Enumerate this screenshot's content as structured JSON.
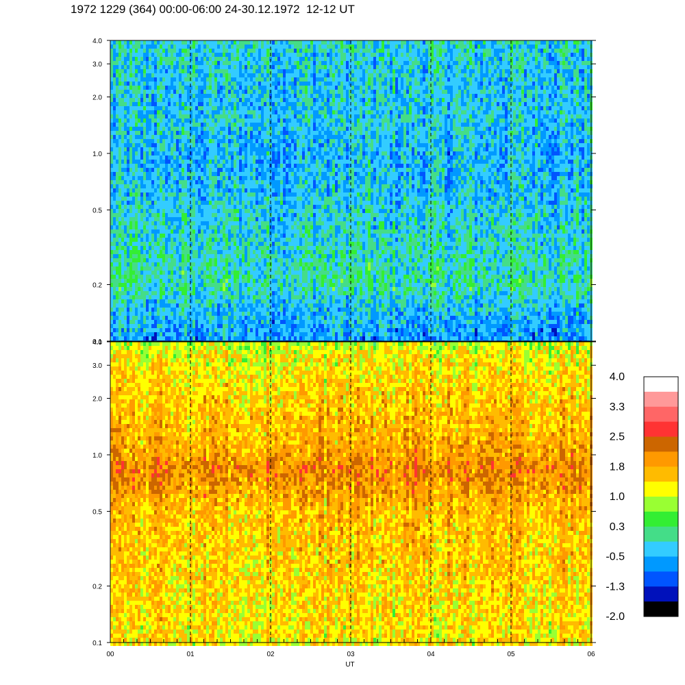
{
  "title": "1972 1229 (364) 00:00-06:00 24-30.12.1972  12-12 UT",
  "chart_data": [
    {
      "type": "heatmap",
      "panel": "upper",
      "y_scale": "log",
      "ylim": [
        0.1,
        4.0
      ],
      "yticks": [
        0.1,
        0.2,
        0.5,
        1.0,
        2.0,
        3.0,
        4.0
      ],
      "ytick_labels": [
        "0.1",
        "0.2",
        "0.5",
        "1.0",
        "2.0",
        "3.0",
        "4.0"
      ],
      "xlim": [
        0,
        6
      ],
      "xticks": [
        0,
        1,
        2,
        3,
        4,
        5,
        6
      ],
      "xtick_labels": [
        "00",
        "01",
        "02",
        "03",
        "04",
        "05",
        "06"
      ],
      "vlines": [
        1,
        2,
        3,
        4,
        5
      ],
      "profile": [
        {
          "y": 0.1,
          "value": -0.7
        },
        {
          "y": 0.15,
          "value": -0.4
        },
        {
          "y": 0.2,
          "value": 0.0
        },
        {
          "y": 0.5,
          "value": -0.3
        },
        {
          "y": 1.0,
          "value": -0.5
        },
        {
          "y": 1.5,
          "value": -0.3
        },
        {
          "y": 2.0,
          "value": -0.4
        },
        {
          "y": 4.0,
          "value": -0.2
        }
      ]
    },
    {
      "type": "heatmap",
      "panel": "lower",
      "y_scale": "log",
      "ylim": [
        0.1,
        4.0
      ],
      "yticks": [
        0.1,
        0.2,
        0.5,
        1.0,
        2.0,
        3.0,
        4.0
      ],
      "ytick_labels": [
        "0.1",
        "0.2",
        "0.5",
        "1.0",
        "2.0",
        "3.0",
        "4.0"
      ],
      "xlim": [
        0,
        6
      ],
      "xticks": [
        0,
        1,
        2,
        3,
        4,
        5,
        6
      ],
      "xtick_labels": [
        "00",
        "01",
        "02",
        "03",
        "04",
        "05",
        "06"
      ],
      "xlabel": "UT",
      "vlines": [
        1,
        2,
        3,
        4,
        5
      ],
      "profile": [
        {
          "y": 0.1,
          "value": 1.3
        },
        {
          "y": 0.3,
          "value": 1.5
        },
        {
          "y": 0.5,
          "value": 1.6
        },
        {
          "y": 0.85,
          "value": 2.1
        },
        {
          "y": 1.0,
          "value": 1.8
        },
        {
          "y": 2.0,
          "value": 1.5
        },
        {
          "y": 3.5,
          "value": 1.2
        },
        {
          "y": 4.0,
          "value": 0.9
        }
      ]
    }
  ],
  "colorbar": {
    "labels": [
      "4.0",
      "3.3",
      "2.5",
      "1.8",
      "1.0",
      "0.3",
      "-0.5",
      "-1.3",
      "-2.0"
    ],
    "min": -2.0,
    "max": 4.0,
    "colors_top_to_bottom": [
      "#ffffff",
      "#ff9999",
      "#ff6666",
      "#ff3333",
      "#cc6600",
      "#ff9900",
      "#ffbb00",
      "#ffff00",
      "#99ff33",
      "#33ee33",
      "#44dd88",
      "#33ccff",
      "#0099ff",
      "#0055ff",
      "#0011bb",
      "#000000"
    ]
  }
}
